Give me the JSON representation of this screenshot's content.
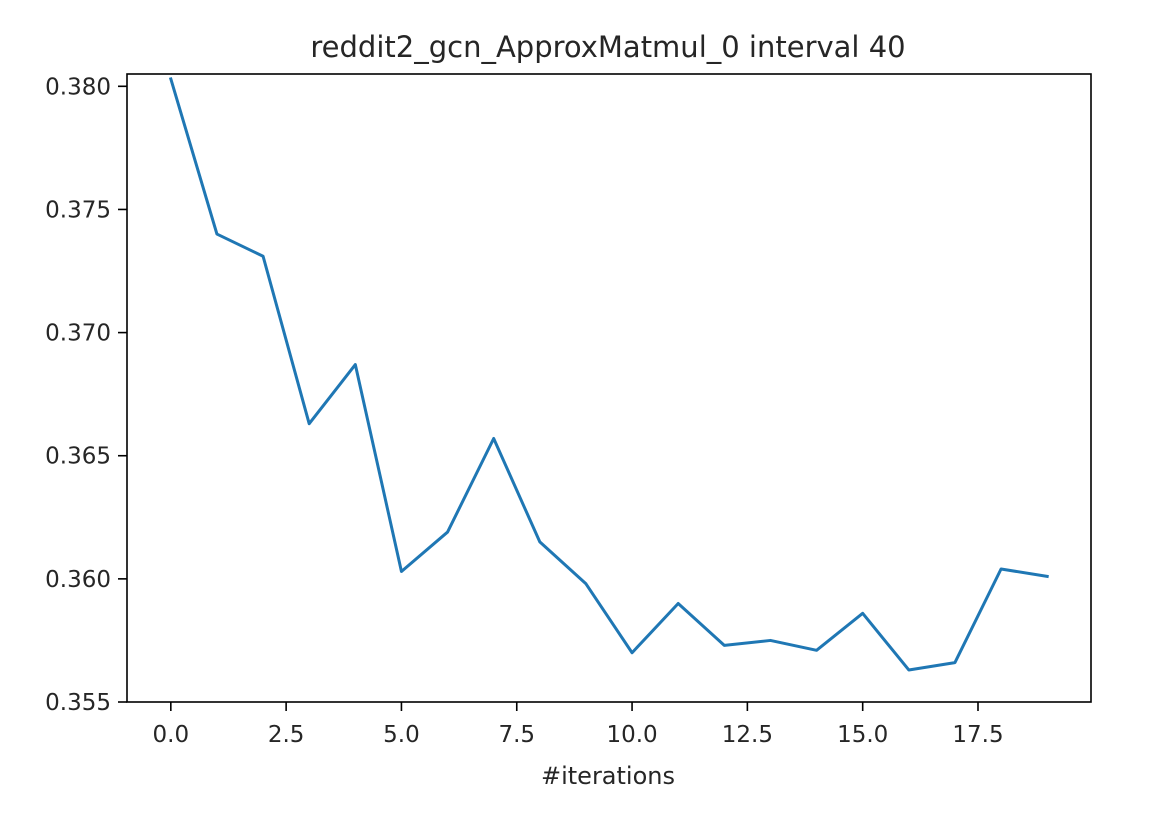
{
  "chart_data": {
    "type": "line",
    "title": "reddit2_gcn_ApproxMatmul_0 interval 40",
    "xlabel": "#iterations",
    "ylabel": "",
    "xlim": [
      -0.95,
      19.95
    ],
    "ylim": [
      0.355,
      0.3805
    ],
    "grid": false,
    "legend": "none",
    "x_ticks": [
      0.0,
      2.5,
      5.0,
      7.5,
      10.0,
      12.5,
      15.0,
      17.5
    ],
    "x_tick_labels": [
      "0.0",
      "2.5",
      "5.0",
      "7.5",
      "10.0",
      "12.5",
      "15.0",
      "17.5"
    ],
    "y_ticks": [
      0.355,
      0.36,
      0.365,
      0.37,
      0.375,
      0.38
    ],
    "y_tick_labels": [
      "0.355",
      "0.360",
      "0.365",
      "0.370",
      "0.375",
      "0.380"
    ],
    "series": [
      {
        "color": "#1f77b4",
        "x": [
          0,
          1,
          2,
          3,
          4,
          5,
          6,
          7,
          8,
          9,
          10,
          11,
          12,
          13,
          14,
          15,
          16,
          17,
          18,
          19
        ],
        "values": [
          0.3803,
          0.374,
          0.3731,
          0.3663,
          0.3687,
          0.3603,
          0.3619,
          0.3657,
          0.3615,
          0.3598,
          0.357,
          0.359,
          0.3573,
          0.3575,
          0.3571,
          0.3586,
          0.3563,
          0.3566,
          0.3604,
          0.3601
        ]
      }
    ]
  }
}
